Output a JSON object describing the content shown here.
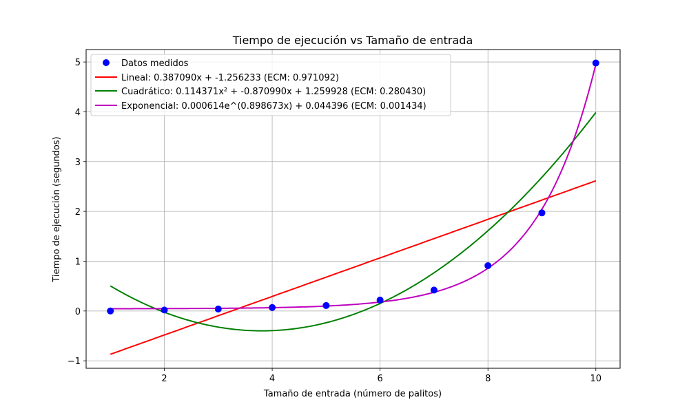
{
  "chart_data": {
    "type": "scatter",
    "title": "Tiempo de ejecución vs Tamaño de entrada",
    "xlabel": "Tamaño de entrada (número de palitos)",
    "ylabel": "Tiempo de ejecución (segundos)",
    "xlim": [
      0.55,
      10.45
    ],
    "ylim": [
      -1.15,
      5.25
    ],
    "xticks": [
      2,
      4,
      6,
      8,
      10
    ],
    "yticks": [
      -1,
      0,
      1,
      2,
      3,
      4,
      5
    ],
    "xtick_labels": [
      "2",
      "4",
      "6",
      "8",
      "10"
    ],
    "ytick_labels": [
      "−1",
      "0",
      "1",
      "2",
      "3",
      "4",
      "5"
    ],
    "grid": true,
    "legend_position": "top-left",
    "measured": {
      "name": "Datos medidos",
      "color": "#0000ff",
      "x": [
        1,
        2,
        3,
        4,
        5,
        6,
        7,
        8,
        9,
        10
      ],
      "y": [
        0.0,
        0.02,
        0.04,
        0.07,
        0.11,
        0.22,
        0.42,
        0.91,
        1.97,
        4.98
      ]
    },
    "fits": [
      {
        "name": "Lineal: 0.387090x + -1.256233 (ECM: 0.971092)",
        "color": "#ff0000",
        "kind": "linear",
        "a": 0.38709,
        "b": -1.256233
      },
      {
        "name": "Cuadrático: 0.114371x² + -0.870990x + 1.259928 (ECM: 0.280430)",
        "color": "#008000",
        "kind": "quadratic",
        "a": 0.114371,
        "b": -0.87099,
        "c": 1.259928
      },
      {
        "name": "Exponencial: 0.000614e^(0.898673x) + 0.044396 (ECM: 0.001434)",
        "color": "#bf00bf",
        "kind": "exponential",
        "a": 0.000614,
        "b": 0.898673,
        "c": 0.044396
      }
    ],
    "fit_x_range": [
      1,
      10
    ]
  }
}
